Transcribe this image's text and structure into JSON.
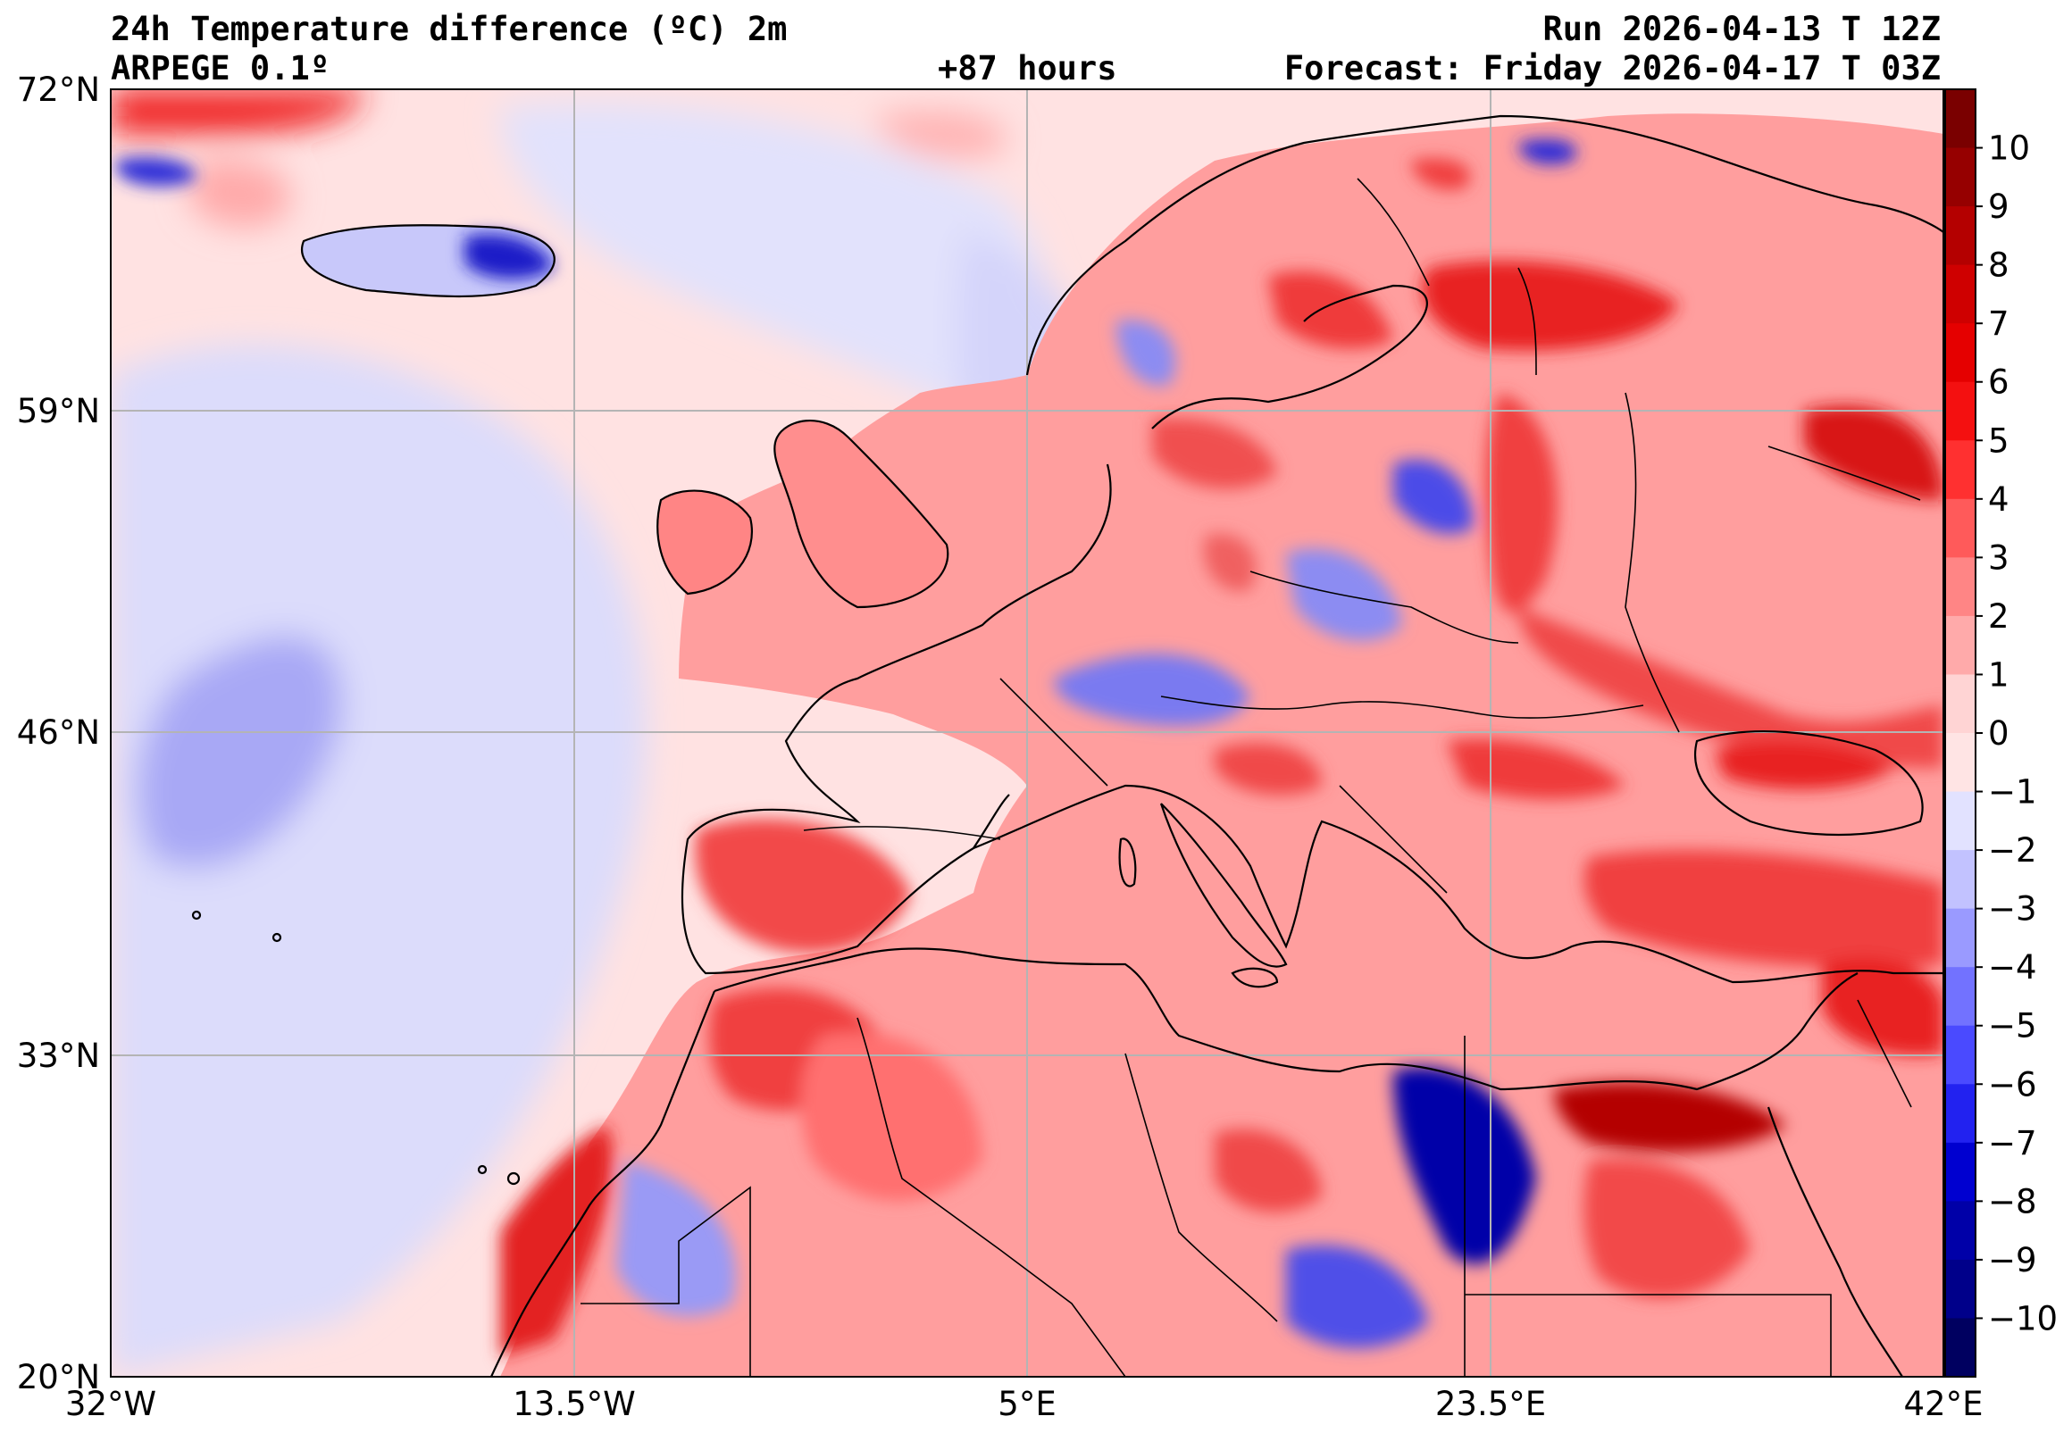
{
  "header": {
    "title": "24h Temperature difference (ºC) 2m",
    "model": "ARPEGE 0.1º",
    "lead_time": "+87 hours",
    "run": "Run 2026-04-13 T 12Z",
    "forecast": "Forecast: Friday 2026-04-17 T 03Z"
  },
  "axes": {
    "lat_ticks": [
      "72°N",
      "59°N",
      "46°N",
      "33°N",
      "20°N"
    ],
    "lon_ticks": [
      "32°W",
      "13.5°W",
      "5°E",
      "23.5°E",
      "42°E"
    ]
  },
  "colorbar": {
    "tick_labels": [
      "10",
      "9",
      "8",
      "7",
      "6",
      "5",
      "4",
      "3",
      "2",
      "1",
      "0",
      "−1",
      "−2",
      "−3",
      "−4",
      "−5",
      "−6",
      "−7",
      "−8",
      "−9",
      "−10"
    ],
    "colors": [
      "#7a0000",
      "#960000",
      "#b40000",
      "#cf0000",
      "#e50000",
      "#f41010",
      "#ff3030",
      "#ff5a5a",
      "#ff8585",
      "#ffaaaa",
      "#ffd4d4",
      "#ffe4e4",
      "#e2e2ff",
      "#c2c2ff",
      "#9a9aff",
      "#7272ff",
      "#4a4aff",
      "#2222f0",
      "#0000d0",
      "#0000a8",
      "#00008a",
      "#000060"
    ]
  },
  "colors": {
    "ocean_warm": "#ffe0e0",
    "ocean_cool": "#dcdcfb",
    "land_warm": "#ff8c8c",
    "land_hot": "#e32020",
    "land_cool": "#9a9af5",
    "land_cold": "#2a2ad8",
    "coastline": "#000000",
    "grid": "#b4b4b4"
  }
}
